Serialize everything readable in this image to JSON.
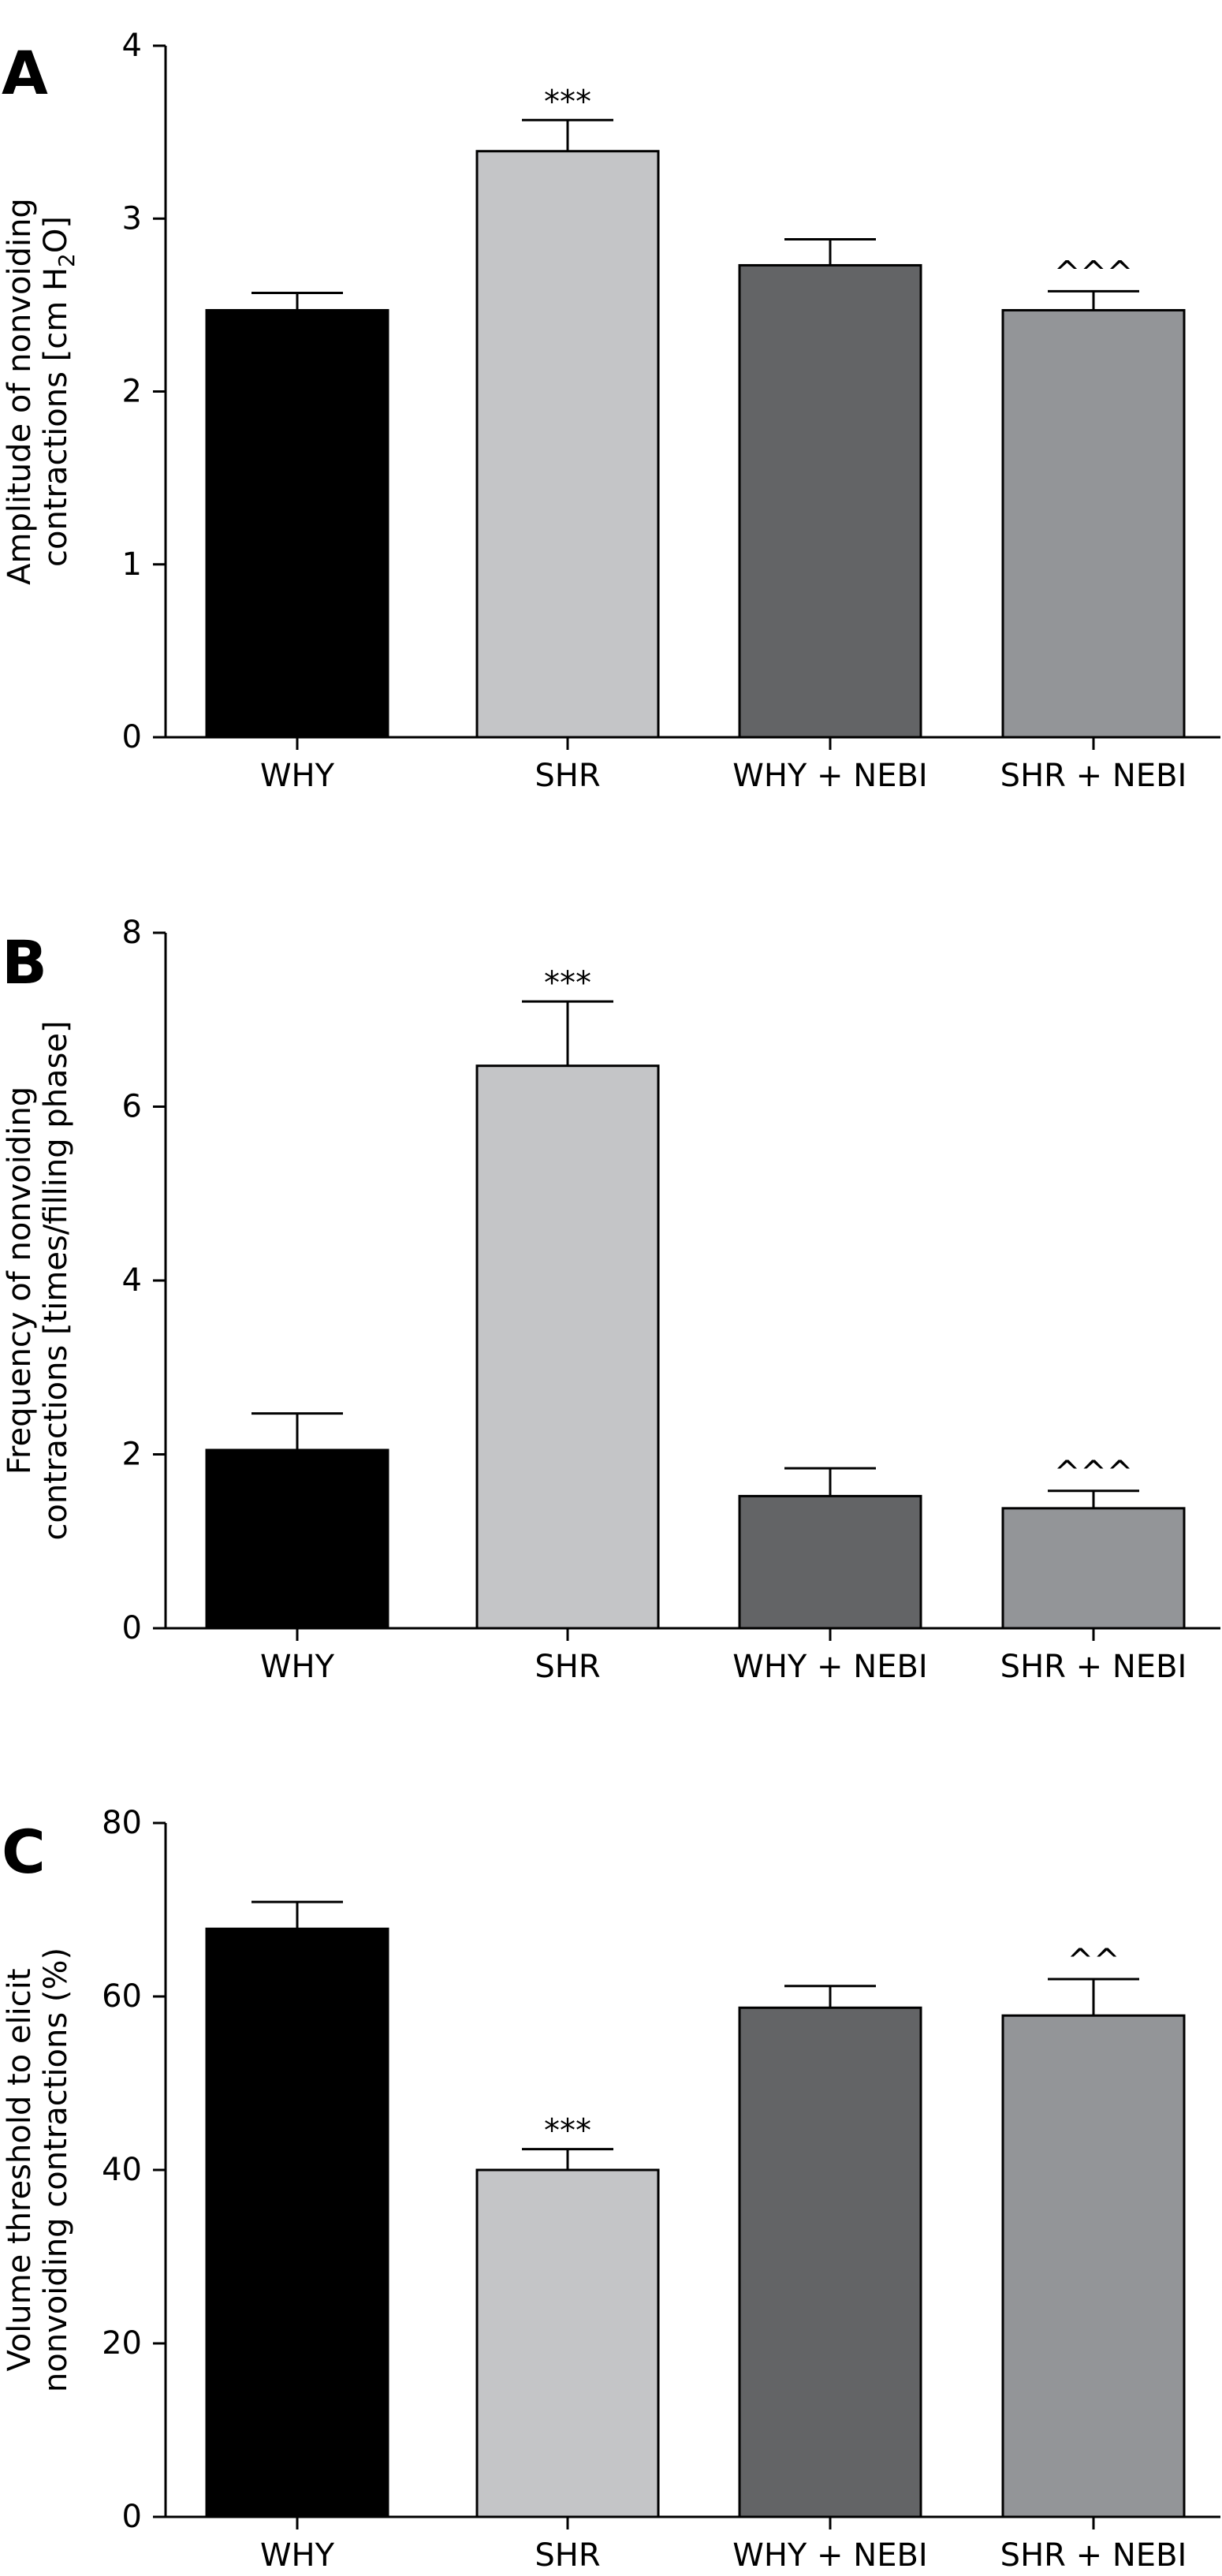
{
  "colors": {
    "WHY": "#000000",
    "SHR": "#c4c5c7",
    "WHY + NEBI": "#636466",
    "SHR + NEBI": "#939598"
  },
  "chart_data": [
    {
      "panel": "A",
      "type": "bar",
      "categories": [
        "WHY",
        "SHR",
        "WHY + NEBI",
        "SHR + NEBI"
      ],
      "values": [
        2.47,
        3.39,
        2.73,
        2.47
      ],
      "errors": [
        0.1,
        0.18,
        0.15,
        0.11
      ],
      "annotations": [
        "",
        "***",
        "",
        "^^^"
      ],
      "ylabel_lines": [
        "Amplitude of nonvoiding",
        "contractions [cm H",
        "2",
        "O]"
      ],
      "ylim": [
        0,
        4
      ],
      "yticks": [
        0,
        1,
        2,
        3,
        4
      ],
      "ytick_labels": [
        "0",
        "1",
        "2",
        "3",
        "4"
      ],
      "grid": false
    },
    {
      "panel": "B",
      "type": "bar",
      "categories": [
        "WHY",
        "SHR",
        "WHY + NEBI",
        "SHR + NEBI"
      ],
      "values": [
        2.05,
        6.47,
        1.52,
        1.38
      ],
      "errors": [
        0.42,
        0.74,
        0.32,
        0.2
      ],
      "annotations": [
        "",
        "***",
        "",
        "^^^"
      ],
      "ylabel_lines": [
        "Frequency of nonvoiding",
        "contractions [times/filling phase]"
      ],
      "ylim": [
        0,
        8
      ],
      "yticks": [
        0,
        2,
        4,
        6,
        8
      ],
      "ytick_labels": [
        "0",
        "2",
        "4",
        "6",
        "8"
      ],
      "grid": false
    },
    {
      "panel": "C",
      "type": "bar",
      "categories": [
        "WHY",
        "SHR",
        "WHY + NEBI",
        "SHR + NEBI"
      ],
      "values": [
        67.8,
        40.0,
        58.7,
        57.8
      ],
      "errors": [
        3.1,
        2.4,
        2.5,
        4.2
      ],
      "annotations": [
        "",
        "***",
        "",
        "^^"
      ],
      "ylabel_lines": [
        "Volume threshold to elicit",
        "nonvoiding contractions (%)"
      ],
      "ylim": [
        0,
        80
      ],
      "yticks": [
        0,
        20,
        40,
        60,
        80
      ],
      "ytick_labels": [
        "0",
        "20",
        "40",
        "60",
        "80"
      ],
      "grid": false
    }
  ]
}
